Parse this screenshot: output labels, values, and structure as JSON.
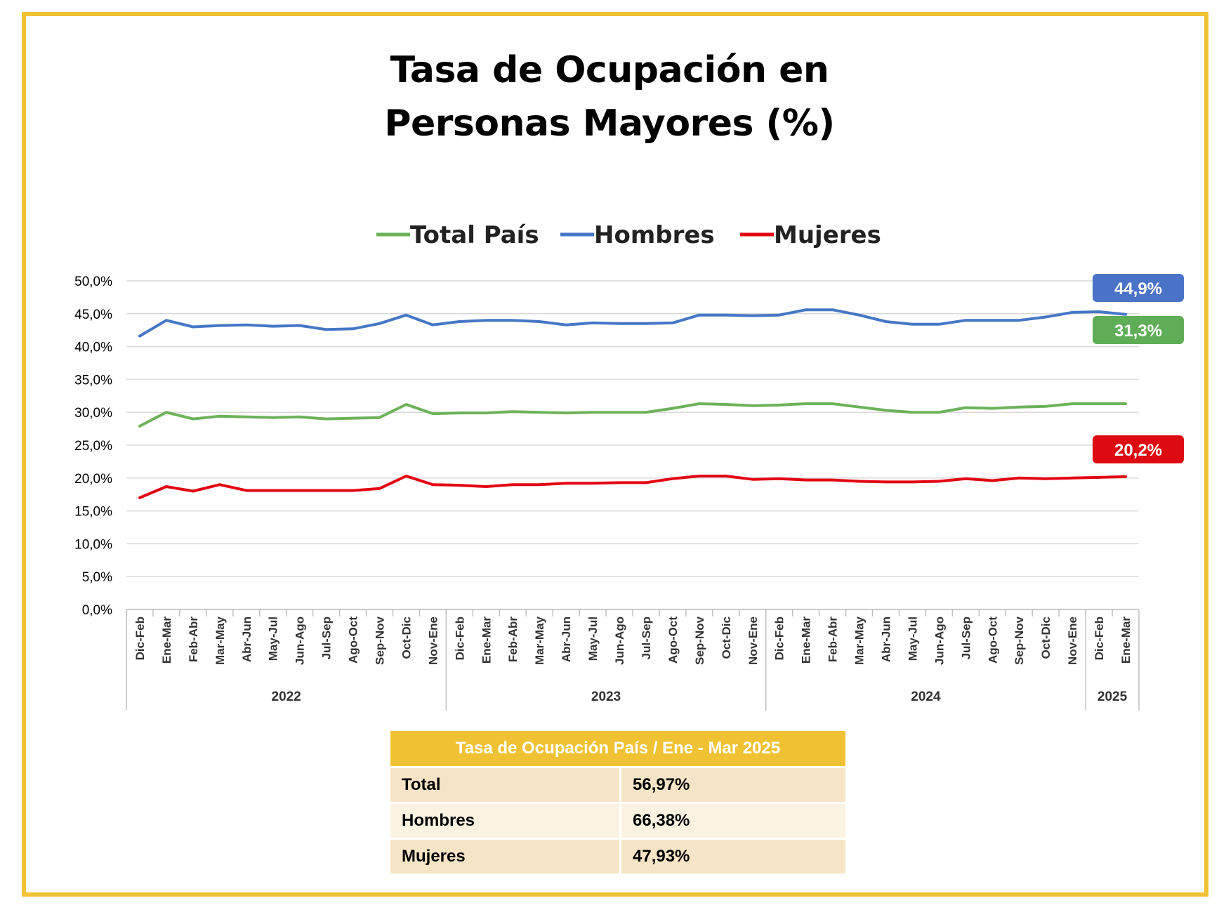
{
  "title_line1": "Tasa de Ocupación en",
  "title_line2": "Personas Mayores (%)",
  "chart_data": {
    "type": "line",
    "ylim": [
      0,
      50
    ],
    "yticks": [
      "0,0%",
      "5,0%",
      "10,0%",
      "15,0%",
      "20,0%",
      "25,0%",
      "30,0%",
      "35,0%",
      "40,0%",
      "45,0%",
      "50,0%"
    ],
    "categories": [
      "Dic-Feb",
      "Ene-Mar",
      "Feb-Abr",
      "Mar-May",
      "Abr-Jun",
      "May-Jul",
      "Jun-Ago",
      "Jul-Sep",
      "Ago-Oct",
      "Sep-Nov",
      "Oct-Dic",
      "Nov-Ene",
      "Dic-Feb",
      "Ene-Mar",
      "Feb-Abr",
      "Mar-May",
      "Abr-Jun",
      "May-Jul",
      "Jun-Ago",
      "Jul-Sep",
      "Ago-Oct",
      "Sep-Nov",
      "Oct-Dic",
      "Nov-Ene",
      "Dic-Feb",
      "Ene-Mar",
      "Feb-Abr",
      "Mar-May",
      "Abr-Jun",
      "May-Jul",
      "Jun-Ago",
      "Jul-Sep",
      "Ago-Oct",
      "Sep-Nov",
      "Oct-Dic",
      "Nov-Ene",
      "Dic-Feb",
      "Ene-Mar"
    ],
    "year_groups": [
      {
        "label": "2022",
        "count": 12
      },
      {
        "label": "2023",
        "count": 12
      },
      {
        "label": "2024",
        "count": 12
      },
      {
        "label": "2025",
        "count": 2
      }
    ],
    "grid": true,
    "legend_position": "top",
    "series": [
      {
        "name": "Total País",
        "color": "#6DB25A",
        "values": [
          27.9,
          30.0,
          29.0,
          29.4,
          29.3,
          29.2,
          29.3,
          29.0,
          29.1,
          29.2,
          31.2,
          29.8,
          29.9,
          29.9,
          30.1,
          30.0,
          29.9,
          30.0,
          30.0,
          30.0,
          30.6,
          31.3,
          31.2,
          31.0,
          31.1,
          31.3,
          31.3,
          30.8,
          30.3,
          30.0,
          30.0,
          30.7,
          30.6,
          30.8,
          30.9,
          31.3,
          31.3,
          31.3
        ],
        "label": "31,3%",
        "label_color": "#5FAE57"
      },
      {
        "name": "Hombres",
        "color": "#4677C6",
        "values": [
          41.6,
          44.0,
          43.0,
          43.2,
          43.3,
          43.1,
          43.2,
          42.6,
          42.7,
          43.5,
          44.8,
          43.3,
          43.8,
          44.0,
          44.0,
          43.8,
          43.3,
          43.6,
          43.5,
          43.5,
          43.6,
          44.8,
          44.8,
          44.7,
          44.8,
          45.6,
          45.6,
          44.8,
          43.8,
          43.4,
          43.4,
          44.0,
          44.0,
          44.0,
          44.5,
          45.2,
          45.3,
          44.9
        ],
        "label": "44,9%",
        "label_color": "#4A72C6"
      },
      {
        "name": "Mujeres",
        "color": "#E30613",
        "values": [
          17.0,
          18.7,
          18.0,
          19.0,
          18.1,
          18.1,
          18.1,
          18.1,
          18.1,
          18.4,
          20.3,
          19.0,
          18.9,
          18.7,
          19.0,
          19.0,
          19.2,
          19.2,
          19.3,
          19.3,
          19.9,
          20.3,
          20.3,
          19.8,
          19.9,
          19.7,
          19.7,
          19.5,
          19.4,
          19.4,
          19.5,
          19.9,
          19.6,
          20.0,
          19.9,
          20.0,
          20.1,
          20.2
        ],
        "label": "20,2%",
        "label_color": "#DE0A12"
      }
    ]
  },
  "summary_table": {
    "header": "Tasa de Ocupación País / Ene - Mar 2025",
    "rows": [
      {
        "label": "Total",
        "value": "56,97%"
      },
      {
        "label": "Hombres",
        "value": "66,38%"
      },
      {
        "label": "Mujeres",
        "value": "47,93%"
      }
    ]
  },
  "colors": {
    "frame": "#F0C233",
    "header_bg": "#F0C233",
    "row_odd": "#F6E4C6",
    "row_even": "#FBF2E2"
  }
}
